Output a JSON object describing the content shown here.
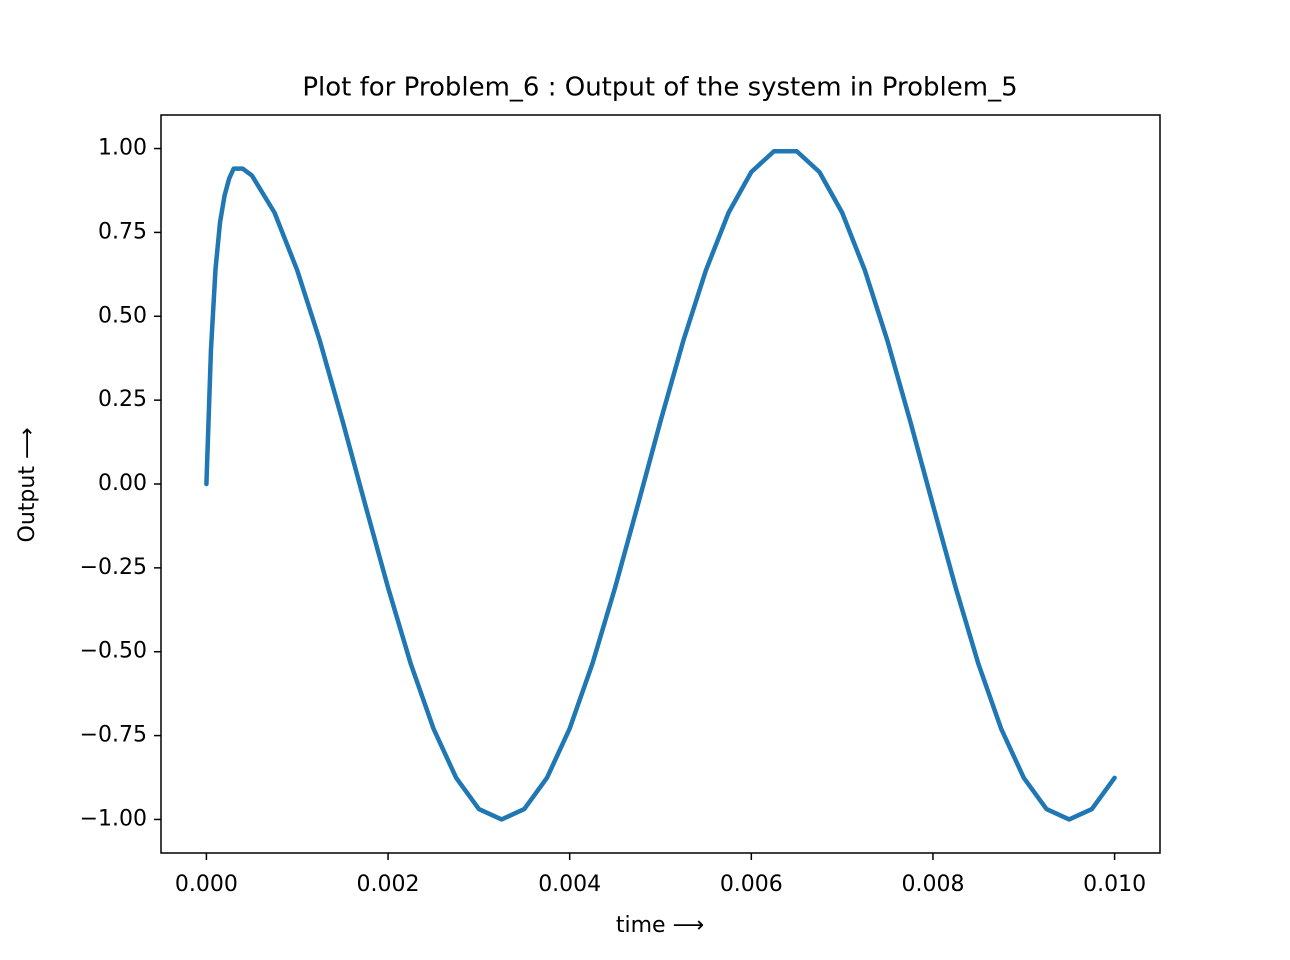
{
  "chart_data": {
    "type": "line",
    "title": "Plot for Problem_6 : Output of the system in Problem_5",
    "x_label": "time ⟶",
    "y_label": "Output ⟶",
    "x": [
      0,
      5e-05,
      0.0001,
      0.00015,
      0.0002,
      0.00025,
      0.0003,
      0.0004,
      0.0005,
      0.00075,
      0.001,
      0.00125,
      0.0015,
      0.00175,
      0.002,
      0.00225,
      0.0025,
      0.00275,
      0.003,
      0.00325,
      0.0035,
      0.00375,
      0.004,
      0.00425,
      0.0045,
      0.00475,
      0.005,
      0.00525,
      0.0055,
      0.00575,
      0.006,
      0.00625,
      0.0065,
      0.00675,
      0.007,
      0.00725,
      0.0075,
      0.00775,
      0.008,
      0.00825,
      0.0085,
      0.00875,
      0.009,
      0.00925,
      0.0095,
      0.00975,
      0.01
    ],
    "series": [
      {
        "color": "#1f77b4",
        "values": [
          0.0,
          0.4,
          0.64,
          0.78,
          0.86,
          0.91,
          0.94,
          0.94,
          0.92,
          0.809,
          0.637,
          0.426,
          0.187,
          -0.063,
          -0.309,
          -0.536,
          -0.729,
          -0.876,
          -0.969,
          -1.0,
          -0.969,
          -0.876,
          -0.729,
          -0.536,
          -0.309,
          -0.063,
          0.187,
          0.426,
          0.637,
          0.809,
          0.93,
          0.992,
          0.992,
          0.93,
          0.809,
          0.637,
          0.426,
          0.187,
          -0.063,
          -0.309,
          -0.536,
          -0.729,
          -0.876,
          -0.969,
          -1.0,
          -0.969,
          -0.876
        ]
      }
    ],
    "xlim": [
      -0.0005,
      0.0105
    ],
    "ylim": [
      -1.1,
      1.1
    ],
    "xticks": [
      {
        "value": 0,
        "label": "0.000"
      },
      {
        "value": 0.002,
        "label": "0.002"
      },
      {
        "value": 0.004,
        "label": "0.004"
      },
      {
        "value": 0.006,
        "label": "0.006"
      },
      {
        "value": 0.008,
        "label": "0.008"
      },
      {
        "value": 0.01,
        "label": "0.010"
      }
    ],
    "yticks": [
      {
        "value": 1,
        "label": "1.00"
      },
      {
        "value": 0.75,
        "label": "0.75"
      },
      {
        "value": 0.5,
        "label": "0.50"
      },
      {
        "value": 0.25,
        "label": "0.25"
      },
      {
        "value": 0,
        "label": "0.00"
      },
      {
        "value": -0.25,
        "label": "−0.25"
      },
      {
        "value": -0.5,
        "label": "−0.50"
      },
      {
        "value": -0.75,
        "label": "−0.75"
      },
      {
        "value": -1,
        "label": "−1.00"
      }
    ]
  }
}
